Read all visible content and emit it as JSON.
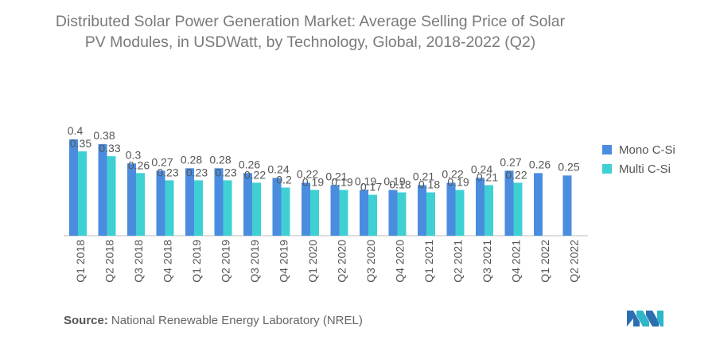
{
  "title": {
    "line1": "Distributed Solar Power Generation Market: Average Selling Price of Solar",
    "line2": "PV Modules, in USDWatt, by Technology, Global, 2018-2022 (Q2)"
  },
  "source": {
    "label": "Source:",
    "text": "National Renewable Energy Laboratory (NREL)"
  },
  "logo": {
    "icon": "mordor-intelligence-logo-icon"
  },
  "colors": {
    "mono": "#4a8ddf",
    "multi": "#3fd0d4",
    "axis": "#bdbdbd",
    "label": "#555555"
  },
  "chart_data": {
    "type": "bar",
    "categories": [
      "Q1 2018",
      "Q2 2018",
      "Q3 2018",
      "Q4 2018",
      "Q1 2019",
      "Q2 2019",
      "Q3 2019",
      "Q4 2019",
      "Q1 2020",
      "Q2 2020",
      "Q3 2020",
      "Q4 2020",
      "Q1 2021",
      "Q2 2021",
      "Q3 2021",
      "Q4 2021",
      "Q1 2022",
      "Q2 2022"
    ],
    "series": [
      {
        "name": "Mono C-Si",
        "values": [
          0.4,
          0.38,
          0.3,
          0.27,
          0.28,
          0.28,
          0.26,
          0.24,
          0.22,
          0.21,
          0.19,
          0.19,
          0.21,
          0.22,
          0.24,
          0.27,
          0.26,
          0.25
        ]
      },
      {
        "name": "Multi C-Si",
        "values": [
          0.35,
          0.33,
          0.26,
          0.23,
          0.23,
          0.23,
          0.22,
          0.2,
          0.19,
          0.19,
          0.17,
          0.18,
          0.18,
          0.19,
          0.21,
          0.22,
          null,
          null
        ]
      }
    ],
    "ylim": [
      0,
      0.4
    ],
    "grid": false,
    "legend": "right"
  }
}
